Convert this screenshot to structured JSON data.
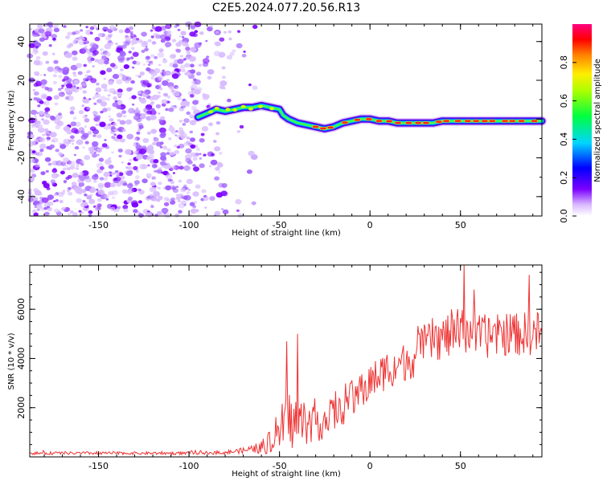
{
  "title": "C2E5.2024.077.20.56.R13",
  "chart_data": [
    {
      "type": "heatmap",
      "xlabel": "Height of straight line (km)",
      "ylabel": "Frequency (Hz)",
      "xlim": [
        -188,
        95
      ],
      "ylim": [
        -50,
        49
      ],
      "x_ticks": [
        "-150",
        "-100",
        "-50",
        "0",
        "50"
      ],
      "y_ticks": [
        "-40",
        "-20",
        "0",
        "20",
        "40"
      ],
      "ridge": {
        "x": [
          -95,
          -90,
          -85,
          -80,
          -75,
          -70,
          -65,
          -60,
          -55,
          -50,
          -48,
          -45,
          -40,
          -35,
          -30,
          -25,
          -20,
          -15,
          -10,
          -5,
          0,
          5,
          10,
          15,
          20,
          25,
          30,
          35,
          40,
          45,
          50,
          55,
          60,
          65,
          70,
          75,
          80,
          85,
          90,
          95
        ],
        "frequency": [
          1,
          3,
          5,
          4,
          5,
          6,
          6,
          7,
          6,
          5,
          2,
          0,
          -2,
          -3,
          -4,
          -5,
          -4,
          -2,
          -1,
          0,
          0,
          -1,
          -1,
          -2,
          -2,
          -2,
          -2,
          -2,
          -1,
          -1,
          -1,
          -1,
          -1,
          -1,
          -1,
          -1,
          -1,
          -1,
          -1,
          -1
        ]
      },
      "noise_region": {
        "x": [
          -188,
          -63
        ],
        "frequency": [
          -50,
          49
        ]
      },
      "colorbar": {
        "label": "Normalized spectral amplitude",
        "range": [
          0,
          1
        ],
        "ticks": [
          "0.0",
          "0.2",
          "0.4",
          "0.6",
          "0.8"
        ]
      }
    },
    {
      "type": "line",
      "xlabel": "Height of straight line (km)",
      "ylabel": "SNR (10 * v/v)",
      "xlim": [
        -188,
        95
      ],
      "ylim": [
        0,
        7800
      ],
      "x_ticks": [
        "-150",
        "-100",
        "-50",
        "0",
        "50"
      ],
      "y_ticks": [
        "2000",
        "4000",
        "6000"
      ],
      "series": [
        {
          "color": "#ee3333",
          "x": [
            -188,
            -100,
            -80,
            -70,
            -60,
            -55,
            -50,
            -45,
            -40,
            -35,
            -30,
            -25,
            -20,
            -15,
            -10,
            -5,
            0,
            5,
            10,
            15,
            20,
            25,
            30,
            35,
            40,
            45,
            50,
            55,
            60,
            65,
            70,
            75,
            80,
            85,
            90,
            95
          ],
          "mean": [
            150,
            150,
            180,
            260,
            380,
            600,
            1100,
            1500,
            1400,
            1400,
            1500,
            1500,
            1700,
            2000,
            2300,
            2700,
            3000,
            3300,
            3600,
            3700,
            3900,
            4100,
            4500,
            4800,
            4800,
            5000,
            5100,
            5200,
            4900,
            4900,
            4900,
            5000,
            5000,
            5000,
            5000,
            5100
          ],
          "spread": [
            60,
            60,
            80,
            120,
            250,
            500,
            900,
            1200,
            1200,
            900,
            900,
            800,
            800,
            700,
            800,
            800,
            800,
            800,
            800,
            800,
            800,
            900,
            900,
            900,
            900,
            1000,
            1000,
            1000,
            900,
            900,
            900,
            900,
            900,
            900,
            900,
            900
          ],
          "peaks": [
            {
              "x": 52,
              "y": 7800
            },
            {
              "x": 88,
              "y": 7400
            },
            {
              "x": -40,
              "y": 5000
            },
            {
              "x": -46,
              "y": 4700
            }
          ]
        }
      ]
    }
  ]
}
